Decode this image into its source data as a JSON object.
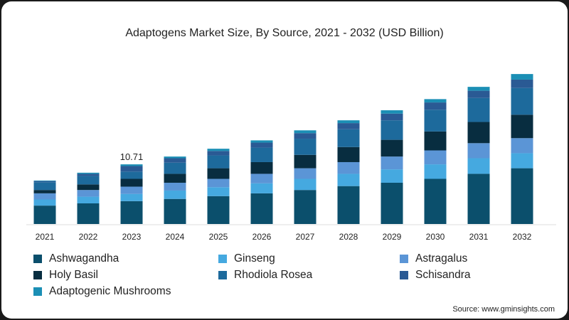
{
  "chart_data": {
    "type": "bar",
    "stacked": true,
    "title": "Adaptogens Market Size, By Source, 2021 - 2032 (USD Billion)",
    "categories": [
      "2021",
      "2022",
      "2023",
      "2024",
      "2025",
      "2026",
      "2027",
      "2028",
      "2029",
      "2030",
      "2031",
      "2032"
    ],
    "series": [
      {
        "name": "Ashwagandha",
        "color": "#0b4f6c",
        "values": [
          3.3,
          3.7,
          4.1,
          4.5,
          5.0,
          5.5,
          6.1,
          6.8,
          7.4,
          8.1,
          9.0,
          10.0
        ]
      },
      {
        "name": "Ginseng",
        "color": "#45a9e0",
        "values": [
          1.1,
          1.2,
          1.3,
          1.5,
          1.6,
          1.8,
          2.0,
          2.2,
          2.4,
          2.6,
          2.8,
          2.7
        ]
      },
      {
        "name": "Astragalus",
        "color": "#5b95d6",
        "values": [
          1.1,
          1.2,
          1.3,
          1.4,
          1.5,
          1.7,
          1.9,
          2.1,
          2.3,
          2.5,
          2.7,
          2.7
        ]
      },
      {
        "name": "Holy Basil",
        "color": "#082d40",
        "values": [
          0.6,
          1.0,
          1.4,
          1.6,
          1.9,
          2.1,
          2.4,
          2.7,
          3.0,
          3.4,
          3.8,
          4.2
        ]
      },
      {
        "name": "Rhodiola Rosea",
        "color": "#1d6a9c",
        "values": [
          1.4,
          1.5,
          1.3,
          2.0,
          2.3,
          2.6,
          2.9,
          3.2,
          3.5,
          3.9,
          4.3,
          4.8
        ]
      },
      {
        "name": "Schisandra",
        "color": "#2a5a94",
        "values": [
          0.2,
          0.4,
          1.0,
          0.8,
          0.8,
          0.9,
          1.0,
          1.1,
          1.2,
          1.3,
          1.3,
          1.5
        ]
      },
      {
        "name": "Adaptogenic Mushrooms",
        "color": "#1b8fb5",
        "values": [
          0.1,
          0.2,
          0.3,
          0.3,
          0.4,
          0.4,
          0.5,
          0.5,
          0.6,
          0.6,
          0.7,
          1.0
        ]
      }
    ],
    "annotations": [
      {
        "category": "2023",
        "text": "10.71"
      }
    ],
    "ylim": [
      0,
      28
    ],
    "grid": false,
    "legend_position": "bottom",
    "source": "Source: www.gminsights.com"
  }
}
